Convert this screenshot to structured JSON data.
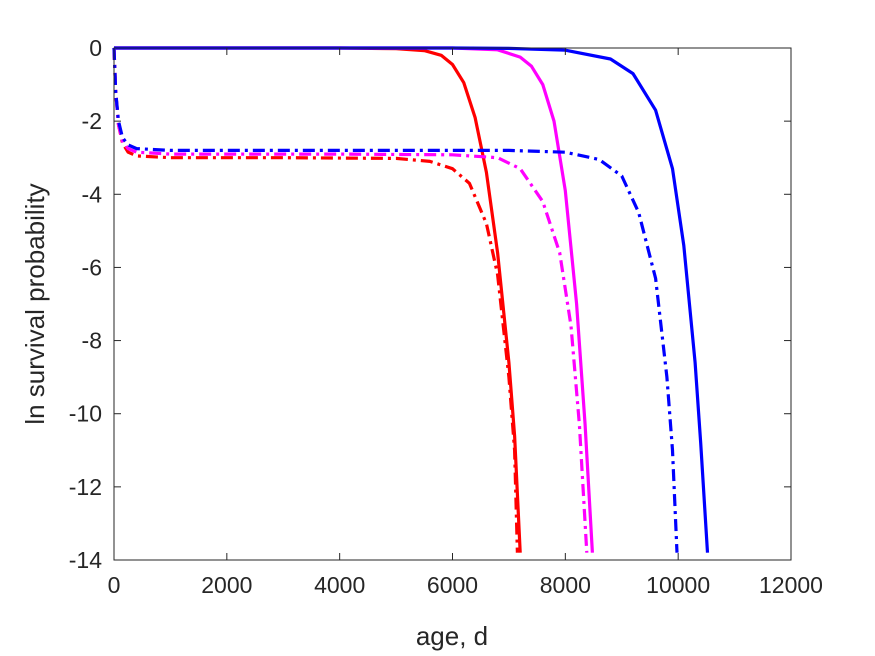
{
  "chart_data": {
    "type": "line",
    "title": "",
    "xlabel": "age, d",
    "ylabel": "ln survival probability",
    "xlim": [
      0,
      12000
    ],
    "ylim": [
      -14,
      0
    ],
    "xticks": [
      0,
      2000,
      4000,
      6000,
      8000,
      10000,
      12000
    ],
    "yticks": [
      0,
      -2,
      -4,
      -6,
      -8,
      -10,
      -12,
      -14
    ],
    "xtick_labels": [
      "0",
      "2000",
      "4000",
      "6000",
      "8000",
      "10000",
      "12000"
    ],
    "ytick_labels": [
      "0",
      "-2",
      "-4",
      "-6",
      "-8",
      "-10",
      "-12",
      "-14"
    ],
    "grid": false,
    "legend": "none",
    "series": [
      {
        "color": "#ff0000",
        "style": "solid",
        "points": [
          [
            0,
            0
          ],
          [
            2000,
            0
          ],
          [
            4000,
            0
          ],
          [
            5000,
            -0.02
          ],
          [
            5500,
            -0.07
          ],
          [
            5800,
            -0.2
          ],
          [
            6000,
            -0.45
          ],
          [
            6200,
            -0.95
          ],
          [
            6400,
            -1.9
          ],
          [
            6600,
            -3.4
          ],
          [
            6800,
            -5.6
          ],
          [
            7000,
            -8.6
          ],
          [
            7100,
            -10.6
          ],
          [
            7200,
            -13.8
          ]
        ]
      },
      {
        "color": "#ff00ff",
        "style": "solid",
        "points": [
          [
            0,
            0
          ],
          [
            2000,
            0
          ],
          [
            4000,
            0
          ],
          [
            6000,
            0
          ],
          [
            6800,
            -0.05
          ],
          [
            7200,
            -0.25
          ],
          [
            7400,
            -0.5
          ],
          [
            7600,
            -1.0
          ],
          [
            7800,
            -2.0
          ],
          [
            8000,
            -3.9
          ],
          [
            8200,
            -7.0
          ],
          [
            8350,
            -10.3
          ],
          [
            8480,
            -13.8
          ]
        ]
      },
      {
        "color": "#0000ff",
        "style": "solid",
        "points": [
          [
            0,
            0
          ],
          [
            2000,
            0
          ],
          [
            4000,
            0
          ],
          [
            6000,
            0
          ],
          [
            7000,
            -0.01
          ],
          [
            8000,
            -0.06
          ],
          [
            8800,
            -0.3
          ],
          [
            9200,
            -0.7
          ],
          [
            9600,
            -1.7
          ],
          [
            9900,
            -3.3
          ],
          [
            10100,
            -5.4
          ],
          [
            10300,
            -8.6
          ],
          [
            10400,
            -10.8
          ],
          [
            10520,
            -13.8
          ]
        ]
      },
      {
        "color": "#ff0000",
        "style": "dashdot",
        "points": [
          [
            0,
            0
          ],
          [
            30,
            -1.2
          ],
          [
            80,
            -2.1
          ],
          [
            150,
            -2.6
          ],
          [
            250,
            -2.85
          ],
          [
            400,
            -2.95
          ],
          [
            1000,
            -3.0
          ],
          [
            3000,
            -3.0
          ],
          [
            5000,
            -3.02
          ],
          [
            5600,
            -3.1
          ],
          [
            6000,
            -3.3
          ],
          [
            6300,
            -3.7
          ],
          [
            6600,
            -4.8
          ],
          [
            6800,
            -6.2
          ],
          [
            7000,
            -9.0
          ],
          [
            7100,
            -11.0
          ],
          [
            7150,
            -13.8
          ]
        ]
      },
      {
        "color": "#ff00ff",
        "style": "dashdot",
        "points": [
          [
            0,
            0
          ],
          [
            30,
            -1.2
          ],
          [
            80,
            -2.1
          ],
          [
            150,
            -2.55
          ],
          [
            250,
            -2.75
          ],
          [
            400,
            -2.85
          ],
          [
            1000,
            -2.9
          ],
          [
            4000,
            -2.9
          ],
          [
            6000,
            -2.92
          ],
          [
            6800,
            -3.0
          ],
          [
            7200,
            -3.3
          ],
          [
            7600,
            -4.2
          ],
          [
            7900,
            -5.6
          ],
          [
            8100,
            -7.6
          ],
          [
            8250,
            -10.3
          ],
          [
            8380,
            -13.8
          ]
        ]
      },
      {
        "color": "#0000ff",
        "style": "dashdot",
        "points": [
          [
            0,
            0
          ],
          [
            30,
            -1.2
          ],
          [
            80,
            -2.0
          ],
          [
            150,
            -2.45
          ],
          [
            250,
            -2.65
          ],
          [
            400,
            -2.75
          ],
          [
            1000,
            -2.8
          ],
          [
            4000,
            -2.8
          ],
          [
            7000,
            -2.8
          ],
          [
            8000,
            -2.85
          ],
          [
            8600,
            -3.05
          ],
          [
            9000,
            -3.5
          ],
          [
            9300,
            -4.5
          ],
          [
            9600,
            -6.3
          ],
          [
            9800,
            -9.0
          ],
          [
            9900,
            -11.0
          ],
          [
            9980,
            -13.8
          ]
        ]
      }
    ]
  }
}
